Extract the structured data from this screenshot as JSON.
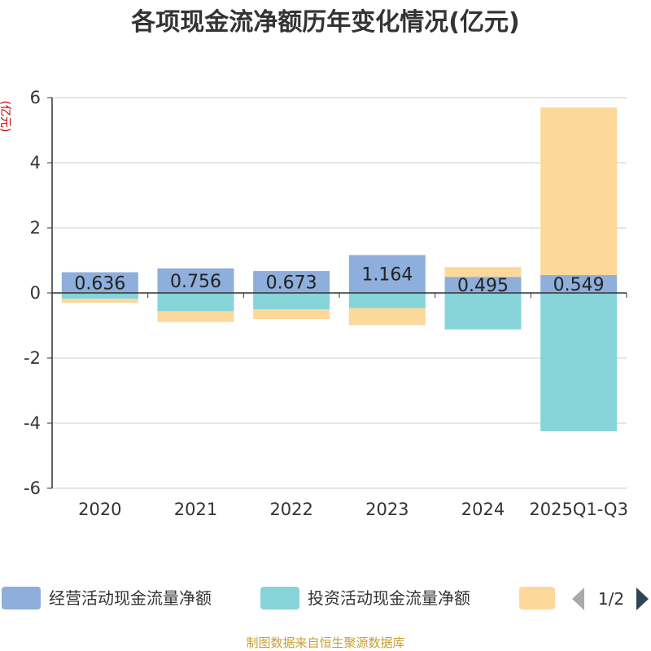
{
  "chart_data": {
    "type": "bar",
    "stacked": true,
    "title": "各项现金流净额历年变化情况(亿元)",
    "unit_label": "(亿元)",
    "categories": [
      "2020",
      "2021",
      "2022",
      "2023",
      "2024",
      "2025Q1-Q3"
    ],
    "ylim": [
      -6,
      6
    ],
    "yticks": [
      6,
      4,
      2,
      0,
      -2,
      -4,
      -6
    ],
    "grid": true,
    "series": [
      {
        "name": "经营活动现金流量净额",
        "color": "#8eaedb",
        "values": [
          0.636,
          0.756,
          0.673,
          1.164,
          0.495,
          0.549
        ],
        "labels": [
          "0.636",
          "0.756",
          "0.673",
          "1.164",
          "0.495",
          "0.549"
        ]
      },
      {
        "name": "投资活动现金流量净额",
        "color": "#86d4d8",
        "values": [
          -0.18,
          -0.56,
          -0.5,
          -0.47,
          -1.12,
          -4.25
        ]
      },
      {
        "name": "",
        "color": "#fdd89b",
        "values": [
          -0.12,
          -0.33,
          -0.3,
          -0.52,
          0.3,
          5.15
        ]
      }
    ]
  },
  "legend": {
    "items": [
      {
        "label": "经营活动现金流量净额",
        "color": "#8eaedb"
      },
      {
        "label": "投资活动现金流量净额",
        "color": "#86d4d8"
      },
      {
        "label": "",
        "color": "#fdd89b"
      }
    ],
    "pager": "1/2",
    "prev_icon": "triangle-left-icon",
    "next_icon": "triangle-right-icon"
  },
  "footer": {
    "source": "制图数据来自恒生聚源数据库"
  }
}
